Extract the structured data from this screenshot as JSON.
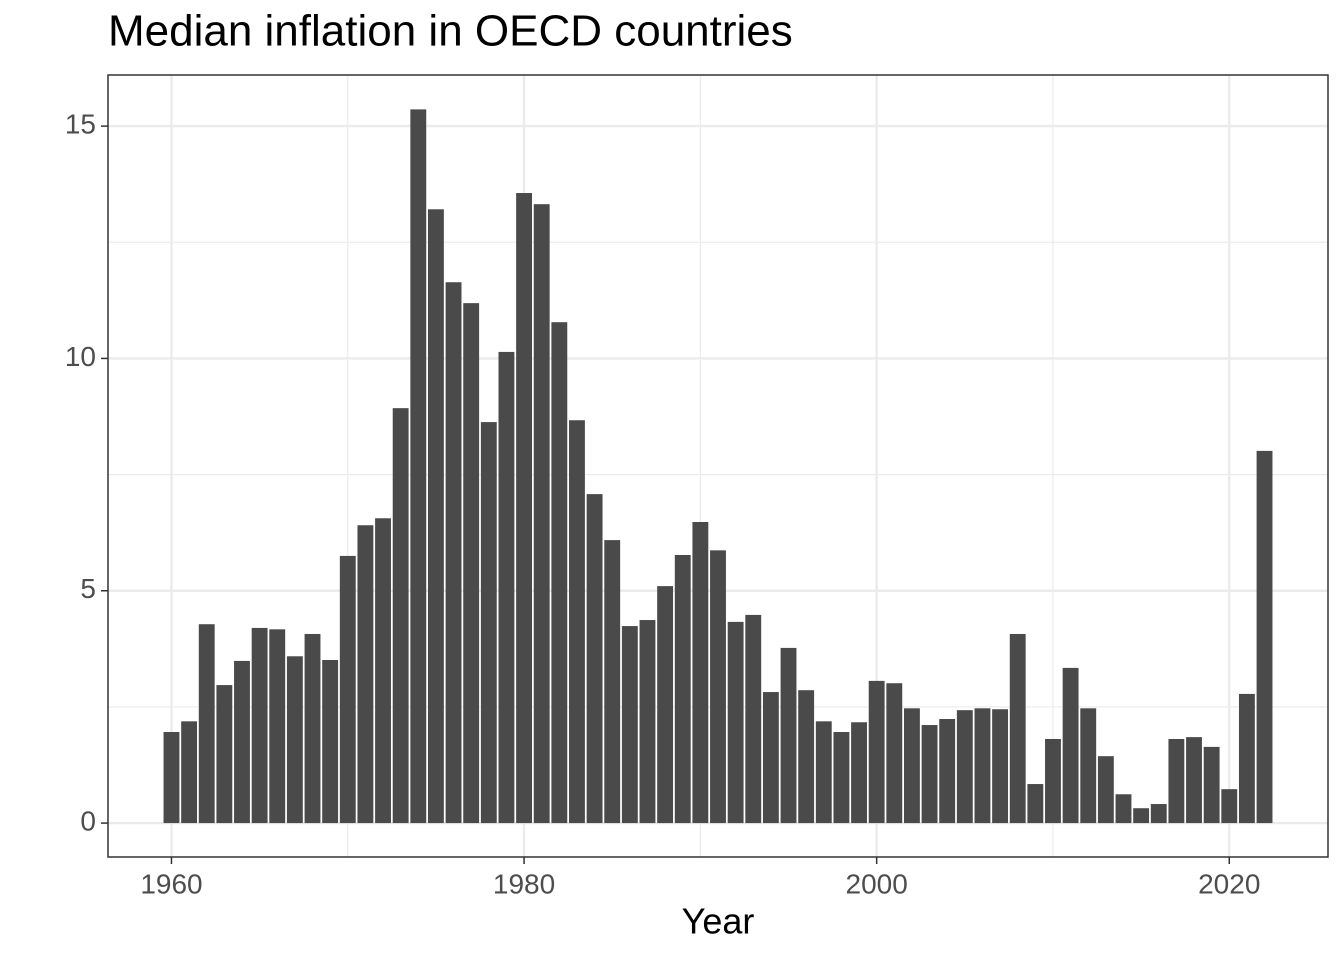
{
  "chart_data": {
    "type": "bar",
    "title": "Median inflation in OECD countries",
    "x_label": "Year",
    "x": [
      1960,
      1961,
      1962,
      1963,
      1964,
      1965,
      1966,
      1967,
      1968,
      1969,
      1970,
      1971,
      1972,
      1973,
      1974,
      1975,
      1976,
      1977,
      1978,
      1979,
      1980,
      1981,
      1982,
      1983,
      1984,
      1985,
      1986,
      1987,
      1988,
      1989,
      1990,
      1991,
      1992,
      1993,
      1994,
      1995,
      1996,
      1997,
      1998,
      1999,
      2000,
      2001,
      2002,
      2003,
      2004,
      2005,
      2006,
      2007,
      2008,
      2009,
      2010,
      2011,
      2012,
      2013,
      2014,
      2015,
      2016,
      2017,
      2018,
      2019,
      2020,
      2021,
      2022
    ],
    "values": [
      1.96,
      2.19,
      4.28,
      2.97,
      3.49,
      4.2,
      4.17,
      3.59,
      4.07,
      3.51,
      5.75,
      6.41,
      6.56,
      8.93,
      15.36,
      13.21,
      11.64,
      11.19,
      8.63,
      10.14,
      13.56,
      13.32,
      10.78,
      8.67,
      7.08,
      6.09,
      4.24,
      4.37,
      5.1,
      5.77,
      6.48,
      5.87,
      4.33,
      4.48,
      2.82,
      3.77,
      2.86,
      2.19,
      1.96,
      2.17,
      3.06,
      3.01,
      2.47,
      2.11,
      2.24,
      2.43,
      2.47,
      2.45,
      4.07,
      0.84,
      1.81,
      3.34,
      2.47,
      1.44,
      0.62,
      0.32,
      0.41,
      1.81,
      1.85,
      1.64,
      0.73,
      2.78,
      8.01
    ],
    "color": "#4a4a4a",
    "xlim": [
      1956.4,
      2025.6
    ],
    "xticks": [
      1960,
      1980,
      2000,
      2020
    ],
    "minor_xticks": [
      1970,
      1990,
      2010
    ],
    "ylim": [
      -0.73,
      16.1
    ],
    "yticks": [
      0,
      5,
      10,
      15
    ],
    "minor_yticks": [
      2.5,
      7.5,
      12.5
    ],
    "grid": true
  }
}
